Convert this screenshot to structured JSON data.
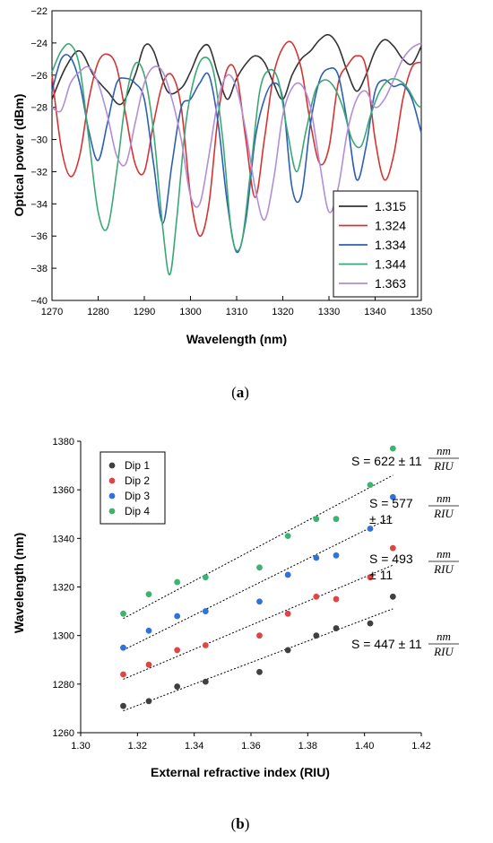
{
  "chart_data": [
    {
      "type": "line",
      "panel_label": "a",
      "xlabel": "Wavelength (nm)",
      "ylabel": "Optical power (dBm)",
      "xlim": [
        1270,
        1350
      ],
      "ylim": [
        -40,
        -22
      ],
      "xticks": [
        "1270",
        "1280",
        "1290",
        "1300",
        "1310",
        "1320",
        "1330",
        "1340",
        "1350"
      ],
      "yticks": [
        "-40",
        "-38",
        "-36",
        "-34",
        "-32",
        "-30",
        "-28",
        "-26",
        "-24",
        "-22"
      ],
      "legend": "bottom-right",
      "grid": false,
      "series": [
        {
          "name": "1.315",
          "color": "#333333",
          "x": [
            1270,
            1273,
            1276,
            1279,
            1282,
            1285,
            1288,
            1290,
            1292,
            1295,
            1298,
            1300,
            1302,
            1304,
            1306,
            1308,
            1310,
            1312,
            1314,
            1316,
            1318,
            1320,
            1322,
            1324,
            1326,
            1328,
            1330,
            1332,
            1334,
            1336,
            1338,
            1340,
            1342,
            1344,
            1346,
            1348,
            1350
          ],
          "y": [
            -27.5,
            -25.5,
            -24.5,
            -26.0,
            -27.0,
            -27.8,
            -26.0,
            -24.2,
            -24.5,
            -27.0,
            -26.8,
            -25.8,
            -24.5,
            -24.2,
            -26.0,
            -27.5,
            -26.2,
            -25.3,
            -24.8,
            -25.2,
            -26.5,
            -27.5,
            -26.0,
            -25.0,
            -24.5,
            -23.8,
            -23.5,
            -24.2,
            -25.8,
            -27.0,
            -26.0,
            -24.5,
            -23.8,
            -24.2,
            -25.0,
            -25.3,
            -24.2
          ]
        },
        {
          "name": "1.324",
          "color": "#d63333",
          "x": [
            1270,
            1272,
            1274,
            1276,
            1278,
            1280,
            1282,
            1284,
            1286,
            1288,
            1290,
            1292,
            1294,
            1296,
            1298,
            1300,
            1302,
            1304,
            1306,
            1308,
            1310,
            1312,
            1314,
            1316,
            1318,
            1320,
            1322,
            1324,
            1326,
            1328,
            1330,
            1332,
            1334,
            1336,
            1338,
            1340,
            1342,
            1344,
            1346,
            1348,
            1350
          ],
          "y": [
            -26.0,
            -30.5,
            -32.3,
            -31.0,
            -27.5,
            -25.2,
            -24.7,
            -25.5,
            -28.5,
            -31.5,
            -32.0,
            -29.0,
            -26.5,
            -26.0,
            -28.0,
            -33.5,
            -36.0,
            -34.0,
            -28.5,
            -25.6,
            -26.0,
            -30.0,
            -33.6,
            -30.0,
            -26.0,
            -24.3,
            -24.0,
            -25.6,
            -29.0,
            -31.5,
            -30.5,
            -26.5,
            -25.4,
            -24.8,
            -25.5,
            -30.0,
            -32.5,
            -31.0,
            -27.5,
            -25.5,
            -25.2
          ]
        },
        {
          "name": "1.334",
          "color": "#2d5fb4",
          "x": [
            1270,
            1272,
            1274,
            1276,
            1278,
            1280,
            1282,
            1284,
            1286,
            1288,
            1290,
            1292,
            1294,
            1296,
            1298,
            1300,
            1302,
            1304,
            1306,
            1308,
            1310,
            1312,
            1314,
            1316,
            1318,
            1320,
            1322,
            1324,
            1326,
            1328,
            1330,
            1332,
            1334,
            1336,
            1338,
            1340,
            1342,
            1344,
            1346,
            1348,
            1350
          ],
          "y": [
            -27.0,
            -25.0,
            -24.9,
            -26.5,
            -29.5,
            -31.3,
            -29.0,
            -26.5,
            -26.2,
            -26.5,
            -27.5,
            -31.5,
            -35.2,
            -31.5,
            -28.0,
            -27.5,
            -26.5,
            -26.0,
            -29.0,
            -34.0,
            -37.0,
            -35.0,
            -30.0,
            -27.5,
            -26.5,
            -27.5,
            -33.0,
            -33.5,
            -29.0,
            -26.3,
            -25.6,
            -26.0,
            -29.0,
            -32.5,
            -30.5,
            -27.0,
            -26.3,
            -26.7,
            -26.6,
            -27.5,
            -29.6
          ]
        },
        {
          "name": "1.344",
          "color": "#3aa875",
          "x": [
            1270,
            1272,
            1274,
            1276,
            1278,
            1280,
            1282,
            1284,
            1286,
            1288,
            1290,
            1292,
            1294,
            1295.5,
            1297,
            1299,
            1301,
            1303,
            1305,
            1307,
            1309,
            1311,
            1313,
            1315,
            1317,
            1319,
            1321,
            1323,
            1325,
            1327,
            1329,
            1331,
            1333,
            1335,
            1337,
            1339,
            1341,
            1343,
            1345,
            1347,
            1349,
            1350
          ],
          "y": [
            -25.8,
            -24.5,
            -24.1,
            -25.5,
            -30.0,
            -34.5,
            -35.5,
            -32.0,
            -27.5,
            -25.3,
            -26.0,
            -29.5,
            -35.5,
            -38.4,
            -35.0,
            -29.0,
            -26.0,
            -24.9,
            -25.8,
            -30.0,
            -36.0,
            -36.5,
            -32.0,
            -27.0,
            -25.7,
            -26.3,
            -29.5,
            -32.0,
            -29.5,
            -27.0,
            -26.3,
            -26.7,
            -28.0,
            -30.0,
            -30.4,
            -28.5,
            -27.0,
            -26.3,
            -26.3,
            -26.8,
            -27.8,
            -28.0
          ]
        },
        {
          "name": "1.363",
          "color": "#b08ed8",
          "x": [
            1270,
            1272,
            1274,
            1276,
            1278,
            1280,
            1282,
            1284,
            1286,
            1288,
            1290,
            1292,
            1294,
            1296,
            1298,
            1300,
            1302,
            1304,
            1306,
            1308,
            1310,
            1312,
            1314,
            1316,
            1318,
            1320,
            1322,
            1324,
            1326,
            1328,
            1330,
            1332,
            1334,
            1336,
            1338,
            1340,
            1342,
            1344,
            1346,
            1348,
            1350
          ],
          "y": [
            -28.0,
            -28.2,
            -26.5,
            -25.8,
            -25.5,
            -26.5,
            -28.5,
            -31.0,
            -31.5,
            -29.0,
            -26.5,
            -25.5,
            -25.8,
            -27.5,
            -30.0,
            -33.5,
            -34.0,
            -31.0,
            -27.5,
            -26.0,
            -26.8,
            -29.5,
            -33.0,
            -35.0,
            -32.5,
            -28.5,
            -26.8,
            -26.6,
            -28.0,
            -31.5,
            -34.5,
            -33.0,
            -29.5,
            -27.5,
            -27.0,
            -28.0,
            -27.5,
            -26.3,
            -25.0,
            -24.3,
            -24.0
          ]
        }
      ]
    },
    {
      "type": "scatter",
      "panel_label": "b",
      "xlabel": "External refractive index (RIU)",
      "ylabel": "Wavelength (nm)",
      "xlim": [
        1.3,
        1.42
      ],
      "ylim": [
        1260,
        1380
      ],
      "xticks": [
        "1.30",
        "1.32",
        "1.34",
        "1.36",
        "1.38",
        "1.40",
        "1.42"
      ],
      "yticks": [
        "1260",
        "1280",
        "1300",
        "1320",
        "1340",
        "1360",
        "1380"
      ],
      "legend": "top-left",
      "grid": false,
      "x": [
        1.315,
        1.324,
        1.334,
        1.344,
        1.363,
        1.373,
        1.383,
        1.39,
        1.402,
        1.41
      ],
      "series": [
        {
          "name": "Dip 1",
          "color": "#404040",
          "values": [
            1271,
            1273,
            1279,
            1281,
            1285,
            1294,
            1300,
            1303,
            1305,
            1316
          ],
          "fit": {
            "x": [
              1.315,
              1.41
            ],
            "y": [
              1269,
              1311
            ]
          }
        },
        {
          "name": "Dip 2",
          "color": "#e04545",
          "values": [
            1284,
            1288,
            1294,
            1296,
            1300,
            1309,
            1316,
            1315,
            1324,
            1336
          ],
          "fit": {
            "x": [
              1.315,
              1.41
            ],
            "y": [
              1282,
              1329
            ]
          }
        },
        {
          "name": "Dip 3",
          "color": "#2f72d9",
          "values": [
            1295,
            1302,
            1308,
            1310,
            1314,
            1325,
            1332,
            1333,
            1344,
            1357
          ],
          "fit": {
            "x": [
              1.315,
              1.41
            ],
            "y": [
              1294,
              1349
            ]
          }
        },
        {
          "name": "Dip 4",
          "color": "#3cb371",
          "values": [
            1309,
            1317,
            1322,
            1324,
            1328,
            1341,
            1348,
            1348,
            1362,
            1377
          ],
          "fit": {
            "x": [
              1.315,
              1.41
            ],
            "y": [
              1307,
              1366
            ]
          }
        }
      ],
      "annotations": [
        {
          "line1": "S = 622 ± 11",
          "line2": "",
          "num": "nm",
          "den": "RIU"
        },
        {
          "line1": "S = 577",
          "line2": "± 11",
          "num": "nm",
          "den": "RIU"
        },
        {
          "line1": "S = 493",
          "line2": "± 11",
          "num": "nm",
          "den": "RIU"
        },
        {
          "line1": "S = 447 ± 11",
          "line2": "",
          "num": "nm",
          "den": "RIU"
        }
      ]
    }
  ]
}
